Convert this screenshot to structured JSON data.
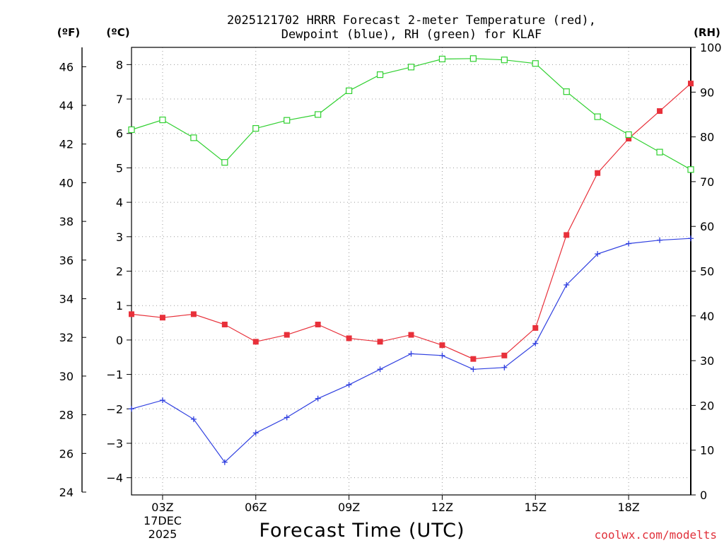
{
  "chart_data": {
    "type": "line",
    "title": {
      "line1": "2025121702 HRRR Forecast 2-meter Temperature (red),",
      "line2": "Dewpoint (blue), RH (green) for KLAF"
    },
    "xlabel": "Forecast Time (UTC)",
    "date_label": {
      "line1": "17DEC",
      "line2": "2025"
    },
    "credit": "coolwx.com/modelts",
    "units": {
      "fahrenheit": "(ºF)",
      "celsius": "(ºC)",
      "rh": "(RH)"
    },
    "x": [
      "02Z",
      "03Z",
      "04Z",
      "05Z",
      "06Z",
      "07Z",
      "08Z",
      "09Z",
      "10Z",
      "11Z",
      "12Z",
      "13Z",
      "14Z",
      "15Z",
      "16Z",
      "17Z",
      "18Z",
      "19Z",
      "20Z"
    ],
    "x_ticks": [
      "03Z",
      "06Z",
      "09Z",
      "12Z",
      "15Z",
      "18Z"
    ],
    "xlim_hours": [
      2,
      20
    ],
    "ylim_c": [
      -4.5,
      8.5
    ],
    "y_ticks_c": [
      "−4",
      "−3",
      "−2",
      "−1",
      "0",
      "1",
      "2",
      "3",
      "4",
      "5",
      "6",
      "7",
      "8"
    ],
    "ylim_f": [
      24,
      47
    ],
    "y_ticks_f": [
      "24",
      "26",
      "28",
      "30",
      "32",
      "34",
      "36",
      "38",
      "40",
      "42",
      "44",
      "46"
    ],
    "ylim_rh": [
      0,
      100
    ],
    "y_ticks_rh": [
      "0",
      "10",
      "20",
      "30",
      "40",
      "50",
      "60",
      "70",
      "80",
      "90",
      "100"
    ],
    "grid": true,
    "series": [
      {
        "name": "Temperature",
        "axis": "celsius",
        "color": "#e8303a",
        "marker": "filled-square",
        "values": [
          0.75,
          0.65,
          0.75,
          0.45,
          -0.05,
          0.15,
          0.45,
          0.05,
          -0.05,
          0.15,
          -0.15,
          -0.55,
          -0.45,
          0.35,
          3.05,
          4.85,
          5.85,
          6.65,
          7.45
        ]
      },
      {
        "name": "Dewpoint",
        "axis": "celsius",
        "color": "#3040e0",
        "marker": "plus",
        "values": [
          -2.0,
          -1.75,
          -2.3,
          -3.55,
          -2.7,
          -2.25,
          -1.7,
          -1.3,
          -0.85,
          -0.4,
          -0.45,
          -0.85,
          -0.8,
          -0.1,
          1.6,
          2.5,
          2.8,
          2.9,
          2.95
        ]
      },
      {
        "name": "RH",
        "axis": "rh",
        "color": "#30d030",
        "marker": "open-square",
        "values": [
          81.6,
          83.8,
          79.8,
          74.3,
          81.9,
          83.7,
          85.0,
          90.3,
          93.9,
          95.6,
          97.4,
          97.5,
          97.2,
          96.4,
          90.1,
          84.5,
          80.5,
          76.6,
          72.7
        ]
      }
    ]
  }
}
